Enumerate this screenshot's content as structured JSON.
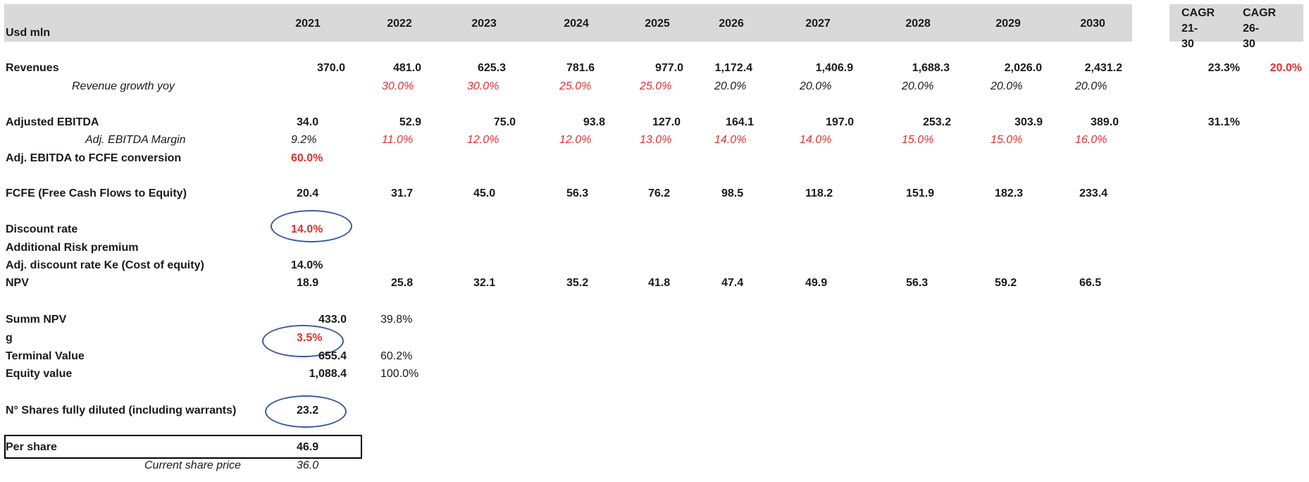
{
  "header": {
    "unit_label": "Usd mln",
    "years": [
      "2021",
      "2022",
      "2023",
      "2024",
      "2025",
      "2026",
      "2027",
      "2028",
      "2029",
      "2030"
    ],
    "cagr_21_30_line1": "CAGR 21-",
    "cagr_21_30_line2": "30",
    "cagr_26_30_line1": "CAGR 26-",
    "cagr_26_30_line2": "30"
  },
  "revenues": {
    "label": "Revenues",
    "values": [
      "370.0",
      "481.0",
      "625.3",
      "781.6",
      "977.0",
      "1,172.4",
      "1,406.9",
      "1,688.3",
      "2,026.0",
      "2,431.2"
    ],
    "cagr_21_30": "23.3%",
    "cagr_26_30": "20.0%"
  },
  "revenue_growth": {
    "label": "Revenue growth yoy",
    "values": [
      "",
      "30.0%",
      "30.0%",
      "25.0%",
      "25.0%",
      "20.0%",
      "20.0%",
      "20.0%",
      "20.0%",
      "20.0%"
    ]
  },
  "adj_ebitda": {
    "label": "Adjusted EBITDA",
    "values": [
      "34.0",
      "52.9",
      "75.0",
      "93.8",
      "127.0",
      "164.1",
      "197.0",
      "253.2",
      "303.9",
      "389.0"
    ],
    "cagr_21_30": "31.1%"
  },
  "ebitda_margin": {
    "label": "Adj. EBITDA Margin",
    "values": [
      "9.2%",
      "11.0%",
      "12.0%",
      "12.0%",
      "13.0%",
      "14.0%",
      "14.0%",
      "15.0%",
      "15.0%",
      "16.0%"
    ]
  },
  "fcfe_conversion": {
    "label": "Adj. EBITDA to FCFE conversion",
    "value": "60.0%"
  },
  "fcfe": {
    "label": "FCFE (Free Cash Flows to Equity)",
    "values": [
      "20.4",
      "31.7",
      "45.0",
      "56.3",
      "76.2",
      "98.5",
      "118.2",
      "151.9",
      "182.3",
      "233.4"
    ]
  },
  "discount_rate": {
    "label": "Discount rate",
    "value": "14.0%"
  },
  "additional_risk": {
    "label": "Additional Risk premium"
  },
  "adj_discount_rate": {
    "label": "Adj. discount rate Ke (Cost of equity)",
    "value": "14.0%"
  },
  "npv": {
    "label": "NPV",
    "values": [
      "18.9",
      "25.8",
      "32.1",
      "35.2",
      "41.8",
      "47.4",
      "49.9",
      "56.3",
      "59.2",
      "66.5"
    ]
  },
  "summ_npv": {
    "label": "Summ NPV",
    "value": "433.0",
    "pct": "39.8%"
  },
  "g": {
    "label": "g",
    "value": "3.5%"
  },
  "terminal_value": {
    "label": "Terminal Value",
    "value": "655.4",
    "pct": "60.2%"
  },
  "equity_value": {
    "label": "Equity value",
    "value": "1,088.4",
    "pct": "100.0%"
  },
  "shares": {
    "label": "N° Shares fully diluted (including warrants)",
    "value": "23.2"
  },
  "per_share": {
    "label": "Per share",
    "value": "46.9"
  },
  "current_price": {
    "label": "Current share price",
    "value": "36.0"
  }
}
